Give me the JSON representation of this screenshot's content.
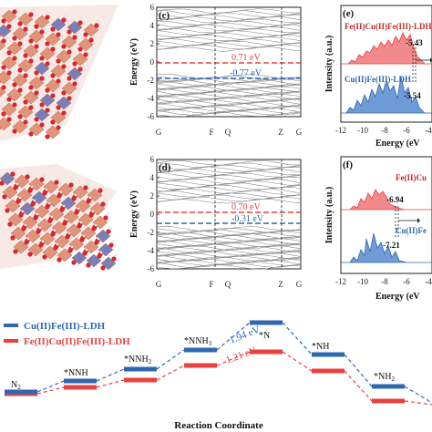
{
  "panels": {
    "c": {
      "label": "(c)",
      "ylabel": "Energy (eV)",
      "yticks": [
        "6",
        "4",
        "2",
        "0",
        "-2",
        "-4",
        "-6"
      ],
      "xticks": [
        "G",
        "F",
        "Q",
        "Z",
        "G"
      ],
      "ann_red": "0.71 eV",
      "ann_blue": "-0.77 eV",
      "red_level": 0.71,
      "blue_level": -0.77
    },
    "d": {
      "label": "(d)",
      "ylabel": "Energy (eV)",
      "yticks": [
        "6",
        "4",
        "2",
        "0",
        "-2",
        "-4",
        "-6"
      ],
      "xticks": [
        "G",
        "F",
        "Q",
        "Z",
        "G"
      ],
      "ann_red": "0.70 eV",
      "ann_blue": "-0.31 eV",
      "red_level": 0.7,
      "blue_level": -0.31
    },
    "e": {
      "label": "(e)",
      "ylabel": "Intensity (a.u.)",
      "xlabel": "Energy (eV",
      "xticks": [
        "-12",
        "-10",
        "-8",
        "-6",
        "-4"
      ],
      "top_name": "Fe(II)Cu(II)Fe(III)-LDH",
      "bottom_name": "Cu(II)Fe(III)-LDH",
      "top_value": "-5.43",
      "bottom_value": "-5.54"
    },
    "f": {
      "label": "(f)",
      "ylabel": "Intensity (a.u.)",
      "xlabel": "Energy (eV",
      "xticks": [
        "-12",
        "-10",
        "-8",
        "-6",
        "-4"
      ],
      "top_name": "Fe(II)Cu",
      "bottom_name": "Cu(II)Fe",
      "top_value": "-6.94",
      "bottom_value": "-7.21"
    }
  },
  "reaction": {
    "legend": [
      "Cu(II)Fe(III)-LDH",
      "Fe(II)Cu(II)Fe(III)-LDH"
    ],
    "species": [
      "N2",
      "*NNH",
      "*NNH2",
      "*NNH3",
      "*N",
      "*NH",
      "*NH2"
    ],
    "barrier_blue": "1.94 eV",
    "barrier_red": "1.21 eV",
    "xlabel": "Reaction Coordinate"
  },
  "colors": {
    "blue": "#2f67b1",
    "red": "#e8413f",
    "blue_fill": "#6f9bd6",
    "red_fill": "#f08a8c"
  }
}
